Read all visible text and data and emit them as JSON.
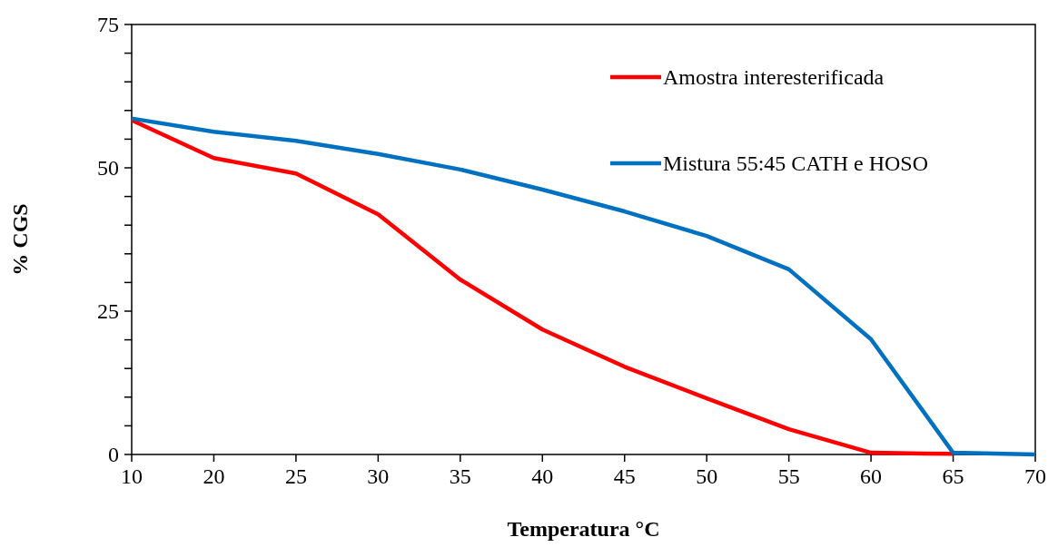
{
  "chart_data": {
    "type": "line",
    "xlabel": "Temperatura °C",
    "ylabel": "% CGS",
    "categories": [
      "10",
      "20",
      "25",
      "30",
      "35",
      "40",
      "45",
      "50",
      "55",
      "60",
      "65",
      "70"
    ],
    "series": [
      {
        "name": "Amostra interesterificada",
        "color": "#ff0000",
        "values": [
          58.3,
          51.7,
          49.0,
          41.9,
          30.5,
          21.8,
          15.3,
          9.8,
          4.4,
          0.3,
          0.1,
          null
        ]
      },
      {
        "name": "Mistura 55:45 CATH e HOSO",
        "color": "#0070c0",
        "values": [
          58.6,
          56.3,
          54.7,
          52.4,
          49.7,
          46.2,
          42.4,
          38.1,
          32.3,
          20.1,
          0.3,
          0.0
        ]
      }
    ],
    "ylim": [
      0,
      75
    ],
    "yticks": [
      0,
      {
        "value": 5,
        "label": null
      },
      {
        "value": 10,
        "label": null
      },
      {
        "value": 15,
        "label": null
      },
      {
        "value": 20,
        "label": null
      },
      25,
      {
        "value": 30,
        "label": null
      },
      {
        "value": 35,
        "label": null
      },
      {
        "value": 40,
        "label": null
      },
      {
        "value": 45,
        "label": null
      },
      50,
      {
        "value": 55,
        "label": null
      },
      {
        "value": 60,
        "label": null
      },
      {
        "value": 65,
        "label": null
      },
      {
        "value": 70,
        "label": null
      },
      75
    ],
    "grid": false,
    "legend": "top right",
    "line_style": "solid"
  }
}
